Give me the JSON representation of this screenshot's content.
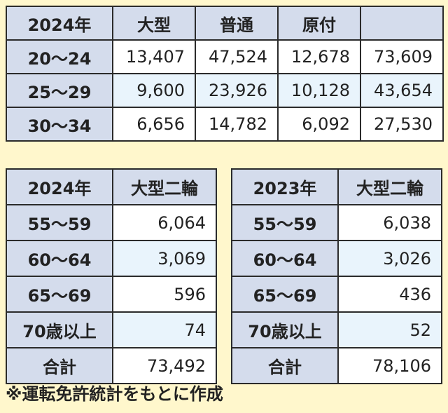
{
  "top_table": {
    "headers": [
      "2024年",
      "大型",
      "普通",
      "原付",
      ""
    ],
    "rows": [
      {
        "label": "20〜24",
        "values": [
          "13,407",
          "47,524",
          "12,678",
          "73,609"
        ]
      },
      {
        "label": "25〜29",
        "values": [
          "9,600",
          "23,926",
          "10,128",
          "43,654"
        ]
      },
      {
        "label": "30〜34",
        "values": [
          "6,656",
          "14,782",
          "6,092",
          "27,530"
        ]
      }
    ]
  },
  "left_table": {
    "headers": [
      "2024年",
      "大型二輪"
    ],
    "rows": [
      {
        "label": "55〜59",
        "value": "6,064"
      },
      {
        "label": "60〜64",
        "value": "3,069"
      },
      {
        "label": "65〜69",
        "value": "596"
      },
      {
        "label": "70歳以上",
        "value": "74"
      },
      {
        "label": "合計",
        "value": "73,492"
      }
    ]
  },
  "right_table": {
    "headers": [
      "2023年",
      "大型二輪"
    ],
    "rows": [
      {
        "label": "55〜59",
        "value": "6,038"
      },
      {
        "label": "60〜64",
        "value": "3,026"
      },
      {
        "label": "65〜69",
        "value": "436"
      },
      {
        "label": "70歳以上",
        "value": "52"
      },
      {
        "label": "合計",
        "value": "78,106"
      }
    ]
  },
  "footnote": "※運転免許統計をもとに作成",
  "colors": {
    "background": "#fff7cc",
    "header_fill": "#d4dcec",
    "alt_row_fill": "#e9f4fc",
    "border": "#2b2b2b"
  }
}
